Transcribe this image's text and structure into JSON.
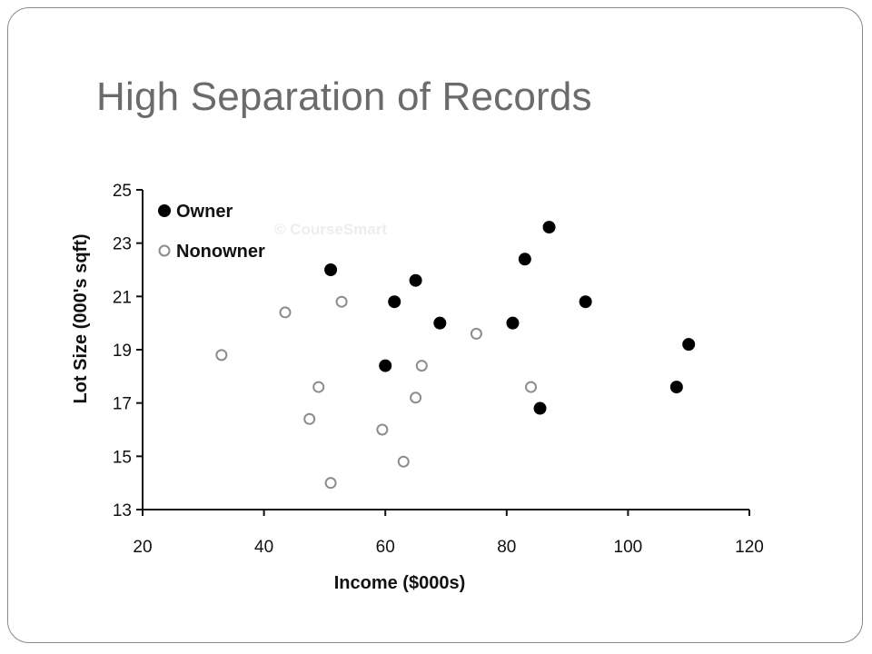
{
  "slide": {
    "title": "High Separation of Records"
  },
  "chart_data": {
    "type": "scatter",
    "xlabel": "Income ($000s)",
    "ylabel": "Lot Size (000's sqft)",
    "xlim": [
      20,
      120
    ],
    "ylim": [
      13,
      25
    ],
    "xticks": [
      20,
      40,
      60,
      80,
      100,
      120
    ],
    "yticks": [
      13,
      15,
      17,
      19,
      21,
      23,
      25
    ],
    "watermark": "© CourseSmart",
    "legend_position": "top-left",
    "grid": false,
    "series": [
      {
        "name": "Owner",
        "marker": "filled-circle",
        "color": "#000000",
        "points": [
          [
            51,
            22.0
          ],
          [
            61.5,
            20.8
          ],
          [
            65,
            21.6
          ],
          [
            69,
            20.0
          ],
          [
            60,
            18.4
          ],
          [
            81,
            20.0
          ],
          [
            83,
            22.4
          ],
          [
            87,
            23.6
          ],
          [
            93,
            20.8
          ],
          [
            85.5,
            16.8
          ],
          [
            108,
            17.6
          ],
          [
            110,
            19.2
          ]
        ]
      },
      {
        "name": "Nonowner",
        "marker": "open-circle",
        "color": "#8c8c8c",
        "points": [
          [
            33,
            18.8
          ],
          [
            43.5,
            20.4
          ],
          [
            52.8,
            20.8
          ],
          [
            49,
            17.6
          ],
          [
            47.5,
            16.4
          ],
          [
            51,
            14.0
          ],
          [
            59.5,
            16.0
          ],
          [
            63,
            14.8
          ],
          [
            65,
            17.2
          ],
          [
            66,
            18.4
          ],
          [
            75,
            19.6
          ],
          [
            84,
            17.6
          ]
        ]
      }
    ]
  }
}
